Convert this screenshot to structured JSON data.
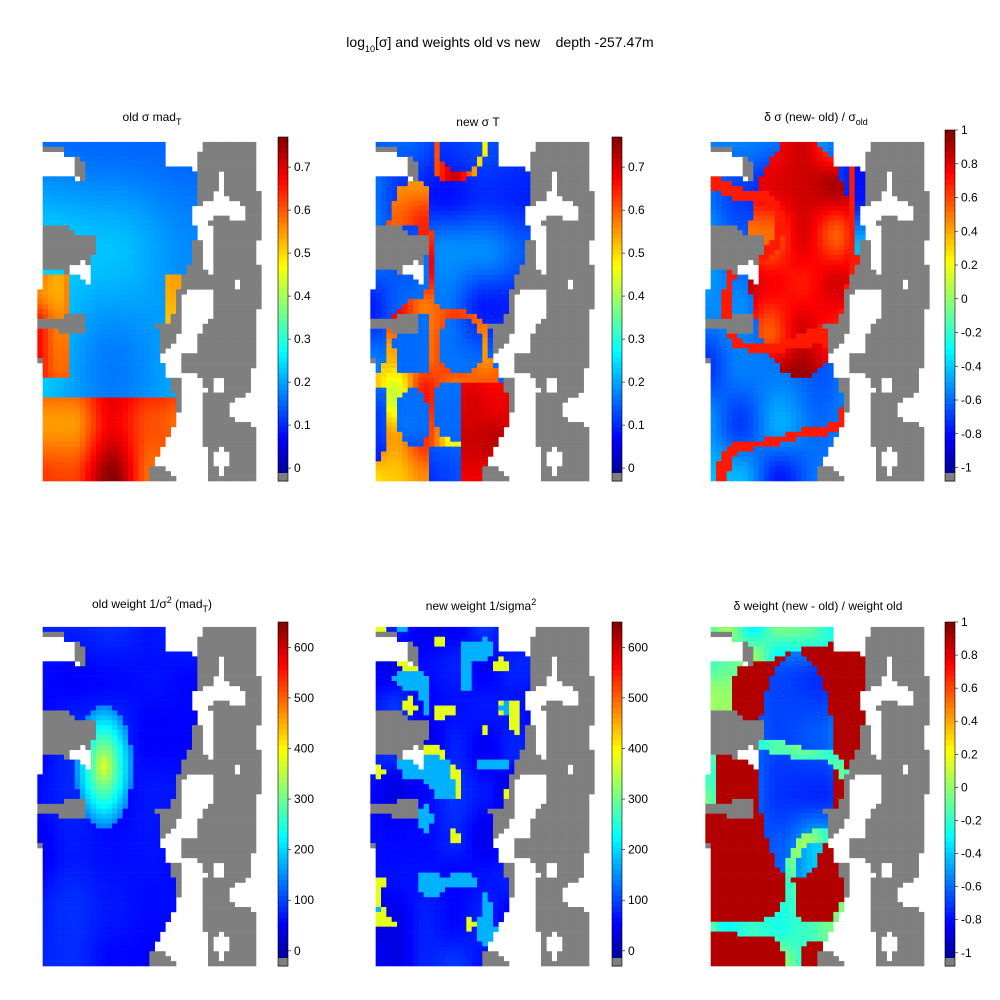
{
  "figure": {
    "title": "log",
    "title_sub": "10",
    "title_rest": "[σ] and weights old vs new    depth -257.47m"
  },
  "colors": {
    "land": "#7f7f7f",
    "jet": [
      "#00007f",
      "#0000ff",
      "#007fff",
      "#00ffff",
      "#7fff7f",
      "#ffff00",
      "#ff7f00",
      "#ff0000",
      "#7f0000"
    ]
  },
  "chart_data": [
    {
      "type": "heatmap",
      "title": "old σ mad",
      "title_sub": "T",
      "colorbar": {
        "range": [
          -0.03,
          0.77
        ],
        "ticks": [
          "0",
          "0.1",
          "0.2",
          "0.3",
          "0.4",
          "0.5",
          "0.6",
          "0.7"
        ],
        "tick_values": [
          0,
          0.1,
          0.2,
          0.3,
          0.4,
          0.5,
          0.6,
          0.7
        ]
      },
      "field": "smooth-low-center"
    },
    {
      "type": "heatmap",
      "title": "new σ T",
      "title_sub": "",
      "colorbar": {
        "range": [
          -0.03,
          0.77
        ],
        "ticks": [
          "0",
          "0.1",
          "0.2",
          "0.3",
          "0.4",
          "0.5",
          "0.6",
          "0.7"
        ],
        "tick_values": [
          0,
          0.1,
          0.2,
          0.3,
          0.4,
          0.5,
          0.6,
          0.7
        ]
      },
      "field": "blue-with-high-ridges"
    },
    {
      "type": "heatmap",
      "title": "δ σ (new- old) / σ",
      "title_sub": "old",
      "colorbar": {
        "range": [
          -1.08,
          1.0
        ],
        "ticks": [
          "1",
          "0.8",
          "0.6",
          "0.4",
          "0.2",
          "0",
          "-0.2",
          "-0.4",
          "-0.6",
          "-0.8",
          "-1"
        ],
        "tick_values": [
          1,
          0.8,
          0.6,
          0.4,
          0.2,
          0,
          -0.2,
          -0.4,
          -0.6,
          -0.8,
          -1
        ]
      },
      "field": "red-center-blue-edges"
    },
    {
      "type": "heatmap",
      "title": "old weight 1/σ",
      "title_sup": "2",
      "title_rest": " (mad",
      "title_sub": "T",
      "title_end": ")",
      "colorbar": {
        "range": [
          -30,
          650
        ],
        "ticks": [
          "0",
          "100",
          "200",
          "300",
          "400",
          "500",
          "600"
        ],
        "tick_values": [
          0,
          100,
          200,
          300,
          400,
          500,
          600
        ]
      },
      "field": "mostly-low-center-blob"
    },
    {
      "type": "heatmap",
      "title": "new weight 1/sigma",
      "title_sup": "2",
      "colorbar": {
        "range": [
          -30,
          650
        ],
        "ticks": [
          "0",
          "100",
          "200",
          "300",
          "400",
          "500",
          "600"
        ],
        "tick_values": [
          0,
          100,
          200,
          300,
          400,
          500,
          600
        ]
      },
      "field": "mostly-low-yellow-specks"
    },
    {
      "type": "heatmap",
      "title": "δ weight (new - old) / weight old",
      "colorbar": {
        "range": [
          -1.08,
          1.0
        ],
        "ticks": [
          "1",
          "0.8",
          "0.6",
          "0.4",
          "0.2",
          "0",
          "-0.2",
          "-0.4",
          "-0.6",
          "-0.8",
          "-1"
        ],
        "tick_values": [
          1,
          0.8,
          0.6,
          0.4,
          0.2,
          0,
          -0.2,
          -0.4,
          -0.6,
          -0.8,
          -1
        ]
      },
      "field": "mostly-high-blue-center"
    }
  ]
}
